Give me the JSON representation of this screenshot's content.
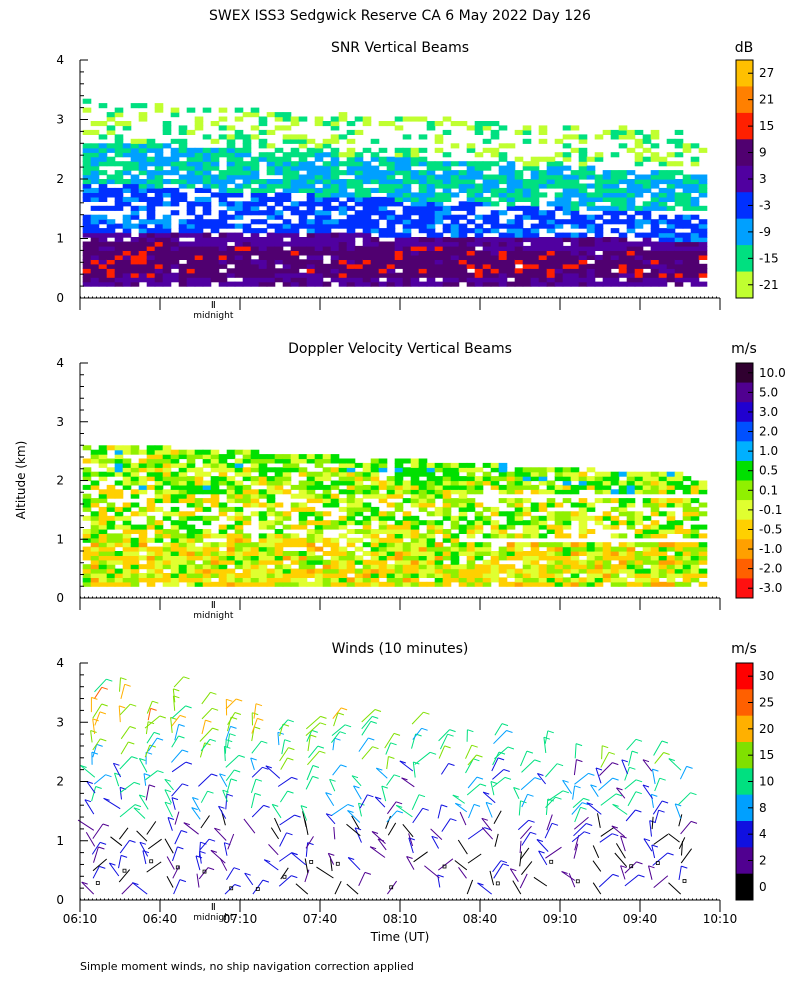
{
  "figure": {
    "title": "SWEX ISS3 Sedgwick Reserve CA   6 May 2022 Day 126",
    "ylabel": "Altitude (km)",
    "xlabel": "Time (UT)",
    "midnight_label": "midnight",
    "footnote": "Simple moment winds, no ship navigation correction applied",
    "x_ticks": [
      "06:10",
      "06:40",
      "07:10",
      "07:40",
      "08:10",
      "08:40",
      "09:10",
      "09:40",
      "10:10"
    ],
    "y_ticks": [
      "0",
      "1",
      "2",
      "3",
      "4"
    ]
  },
  "chart_data": [
    {
      "type": "heatmap",
      "title": "SNR Vertical Beams",
      "units": "dB",
      "xlim": [
        "06:10",
        "10:10"
      ],
      "ylim": [
        0,
        4
      ],
      "colorbar": {
        "labels": [
          "27",
          "21",
          "15",
          "9",
          "3",
          "-3",
          "-9",
          "-15",
          "-21"
        ],
        "colors": [
          "#ffc000",
          "#ff8000",
          "#ff2000",
          "#500070",
          "#5000a0",
          "#0030ff",
          "#00a0ff",
          "#00e080",
          "#c0ff30"
        ]
      },
      "layers": [
        {
          "name": "weak-top",
          "y": [
            2.2,
            3.3
          ],
          "value": -18
        },
        {
          "name": "upper",
          "y": [
            1.4,
            2.6
          ],
          "value": -12
        },
        {
          "name": "mid",
          "y": [
            0.9,
            1.9
          ],
          "value": -4
        },
        {
          "name": "lower",
          "y": [
            0.2,
            1.1
          ],
          "value": 4
        },
        {
          "name": "strong-low",
          "y": [
            0.3,
            0.9
          ],
          "value": 9
        }
      ]
    },
    {
      "type": "heatmap",
      "title": "Doppler Velocity Vertical Beams",
      "units": "m/s",
      "xlim": [
        "06:10",
        "10:10"
      ],
      "ylim": [
        0,
        4
      ],
      "colorbar": {
        "labels": [
          "10.0",
          "5.0",
          "3.0",
          "2.0",
          "1.0",
          "0.5",
          "0.1",
          "-0.1",
          "-0.5",
          "-1.0",
          "-2.0",
          "-3.0"
        ],
        "colors": [
          "#300030",
          "#500090",
          "#2000d0",
          "#0050ff",
          "#00b0ff",
          "#00e000",
          "#90f000",
          "#e0ff30",
          "#ffd000",
          "#ffa000",
          "#ff6000",
          "#ff1010"
        ]
      },
      "layers": [
        {
          "name": "upper",
          "y": [
            1.7,
            2.6
          ],
          "value": 0.2
        },
        {
          "name": "mid",
          "y": [
            1.0,
            1.8
          ],
          "value": 0.0
        },
        {
          "name": "lower",
          "y": [
            0.15,
            1.05
          ],
          "value": -0.2
        }
      ]
    },
    {
      "type": "wind-barbs",
      "title": "Winds (10 minutes)",
      "units": "m/s",
      "xlim": [
        "06:10",
        "10:10"
      ],
      "ylim": [
        0,
        4
      ],
      "profile_interval_min": 10,
      "colorbar": {
        "labels": [
          "30",
          "25",
          "20",
          "15",
          "10",
          "8",
          "4",
          "2",
          "0"
        ],
        "colors": [
          "#ff0000",
          "#ff6000",
          "#ffb000",
          "#80e000",
          "#00e080",
          "#00a0ff",
          "#1010e0",
          "#500090",
          "#000000"
        ]
      }
    }
  ]
}
